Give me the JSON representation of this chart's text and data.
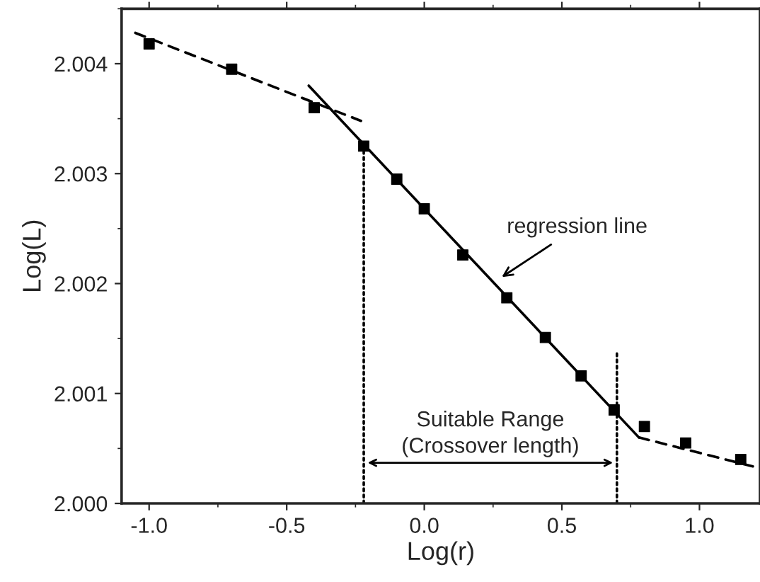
{
  "chart_data": {
    "type": "line",
    "xlabel": "Log(r)",
    "ylabel": "Log(L)",
    "grid": false,
    "xlim": [
      -1.1,
      1.22
    ],
    "ylim": [
      2.0,
      2.0045
    ],
    "xticks": [
      {
        "value": -1.0,
        "label": "-1.0"
      },
      {
        "value": -0.5,
        "label": "-0.5"
      },
      {
        "value": 0.0,
        "label": "0.0"
      },
      {
        "value": 0.5,
        "label": "0.5"
      },
      {
        "value": 1.0,
        "label": "1.0"
      }
    ],
    "yticks": [
      {
        "value": 2.0,
        "label": "2.000"
      },
      {
        "value": 2.001,
        "label": "2.001"
      },
      {
        "value": 2.002,
        "label": "2.002"
      },
      {
        "value": 2.003,
        "label": "2.003"
      },
      {
        "value": 2.004,
        "label": "2.004"
      }
    ],
    "series": [
      {
        "type": "scatter",
        "marker": "square",
        "color": "#000000",
        "x": [
          -1.0,
          -0.7,
          -0.4,
          -0.22,
          -0.1,
          0.0,
          0.14,
          0.3,
          0.44,
          0.57,
          0.69,
          0.8,
          0.95,
          1.15
        ],
        "values": [
          2.00418,
          2.00395,
          2.0036,
          2.00325,
          2.00295,
          2.00268,
          2.00226,
          2.00187,
          2.00151,
          2.00116,
          2.00085,
          2.0007,
          2.00055,
          2.0004
        ]
      },
      {
        "type": "line",
        "line_style": "dashed",
        "color": "#000000",
        "x": [
          -1.05,
          -0.23
        ],
        "values": [
          2.00428,
          2.00348
        ]
      },
      {
        "line_style": "solid",
        "color": "#000000",
        "x": [
          -0.42,
          0.78
        ],
        "values": [
          2.0038,
          2.0006
        ]
      },
      {
        "type": "line",
        "line_style": "dashed",
        "color": "#000000",
        "x": [
          0.78,
          1.22
        ],
        "values": [
          2.0006,
          2.00032
        ]
      },
      {
        "type": "line",
        "line_style": "dotted",
        "color": "#000000",
        "x": [
          -0.22,
          -0.22
        ],
        "values": [
          2.0,
          2.00325
        ]
      },
      {
        "type": "line",
        "line_style": "dotted",
        "color": "#000000",
        "x": [
          0.7,
          0.7
        ],
        "values": [
          2.0,
          2.00138
        ]
      }
    ],
    "annotations": [
      {
        "text": "regression line",
        "x": 0.27,
        "y": 2.00204
      },
      "Suitable Range\n(Crossover length)"
    ]
  }
}
